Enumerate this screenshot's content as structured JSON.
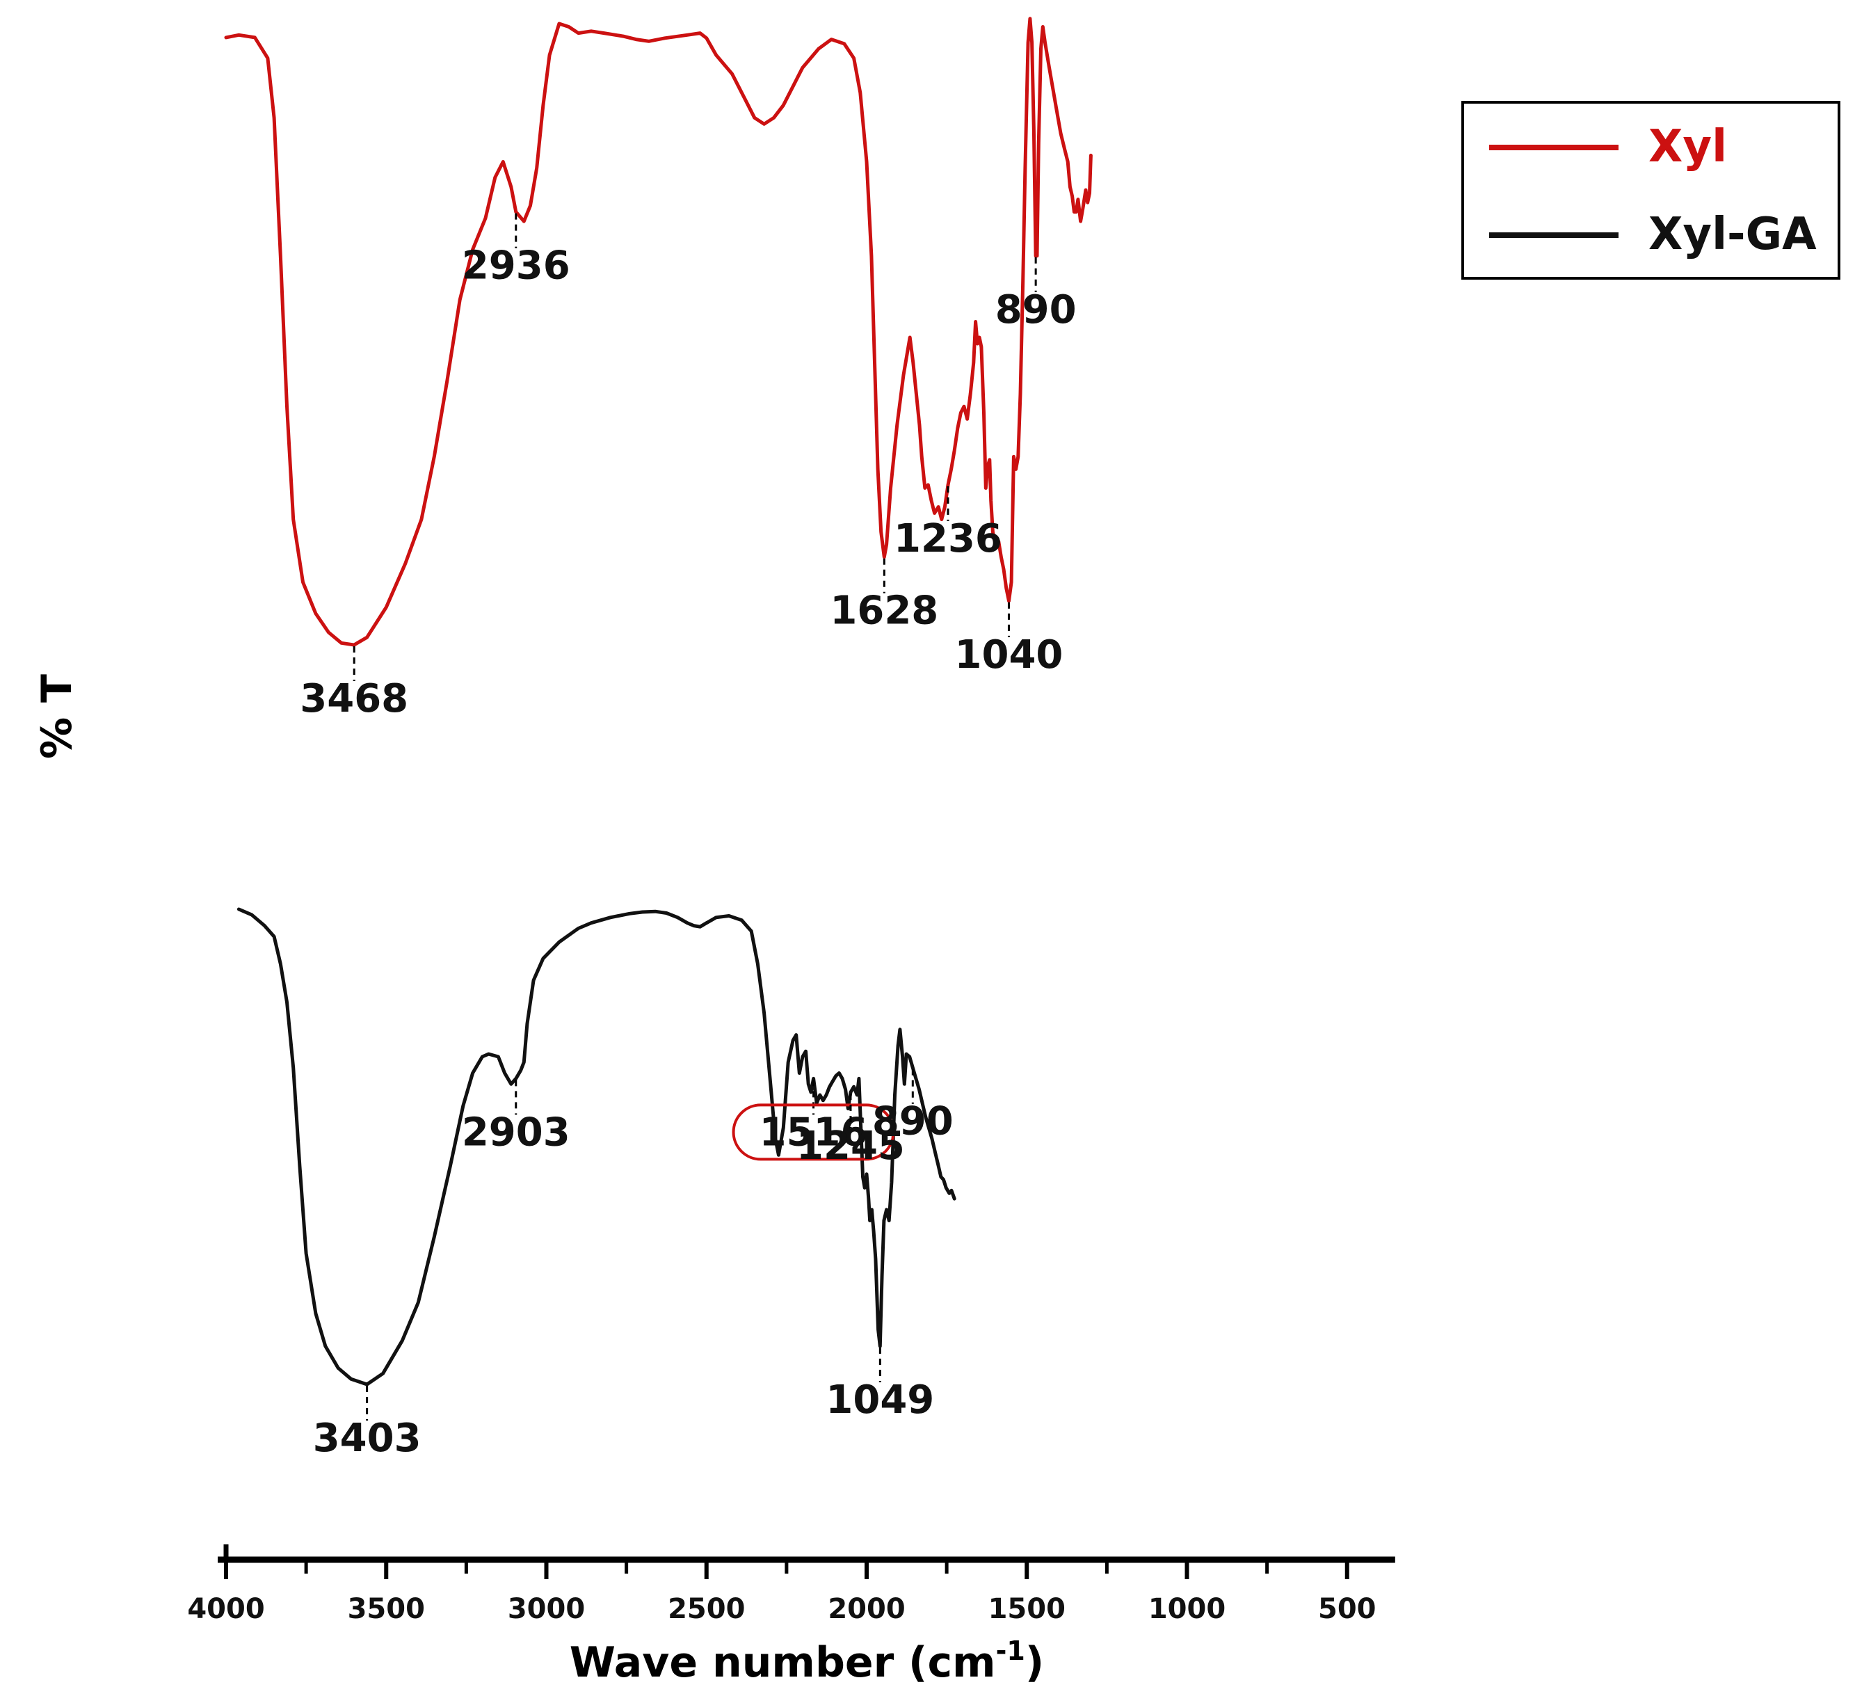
{
  "chart_data": {
    "type": "line",
    "xlabel_main": "Wave number (cm",
    "xlabel_sup": "-1",
    "xlabel_close": ")",
    "ylabel": "% T",
    "xlim": [
      4000,
      350
    ],
    "x_ticks": [
      4000,
      3500,
      3000,
      2500,
      2000,
      1500,
      1000,
      500
    ],
    "x_tick_labels": [
      "4000",
      "3500",
      "3000",
      "2500",
      "2000",
      "1500",
      "1000",
      "500"
    ],
    "legend": {
      "position": "top-right"
    },
    "series": [
      {
        "name": "Xyl",
        "color": "#cc1111",
        "points": [
          [
            4000,
            0.968
          ],
          [
            3960,
            0.972
          ],
          [
            3910,
            0.968
          ],
          [
            3870,
            0.935
          ],
          [
            3850,
            0.84
          ],
          [
            3830,
            0.62
          ],
          [
            3810,
            0.38
          ],
          [
            3790,
            0.2
          ],
          [
            3760,
            0.1
          ],
          [
            3720,
            0.05
          ],
          [
            3680,
            0.02
          ],
          [
            3640,
            0.003
          ],
          [
            3600,
            0.0
          ],
          [
            3560,
            0.012
          ],
          [
            3500,
            0.06
          ],
          [
            3440,
            0.13
          ],
          [
            3390,
            0.2
          ],
          [
            3350,
            0.3
          ],
          [
            3310,
            0.42
          ],
          [
            3270,
            0.55
          ],
          [
            3230,
            0.63
          ],
          [
            3190,
            0.68
          ],
          [
            3160,
            0.745
          ],
          [
            3135,
            0.77
          ],
          [
            3110,
            0.73
          ],
          [
            3095,
            0.69
          ],
          [
            3070,
            0.675
          ],
          [
            3050,
            0.7
          ],
          [
            3030,
            0.76
          ],
          [
            3010,
            0.86
          ],
          [
            2990,
            0.94
          ],
          [
            2960,
            0.99
          ],
          [
            2930,
            0.985
          ],
          [
            2900,
            0.975
          ],
          [
            2860,
            0.978
          ],
          [
            2820,
            0.975
          ],
          [
            2760,
            0.97
          ],
          [
            2720,
            0.965
          ],
          [
            2680,
            0.962
          ],
          [
            2630,
            0.967
          ],
          [
            2560,
            0.972
          ],
          [
            2520,
            0.975
          ],
          [
            2500,
            0.967
          ],
          [
            2470,
            0.94
          ],
          [
            2420,
            0.91
          ],
          [
            2380,
            0.87
          ],
          [
            2350,
            0.84
          ],
          [
            2320,
            0.83
          ],
          [
            2290,
            0.84
          ],
          [
            2260,
            0.86
          ],
          [
            2230,
            0.89
          ],
          [
            2200,
            0.92
          ],
          [
            2150,
            0.95
          ],
          [
            2110,
            0.965
          ],
          [
            2070,
            0.958
          ],
          [
            2040,
            0.935
          ],
          [
            2020,
            0.88
          ],
          [
            2000,
            0.77
          ],
          [
            1985,
            0.62
          ],
          [
            1975,
            0.45
          ],
          [
            1965,
            0.28
          ],
          [
            1955,
            0.18
          ],
          [
            1945,
            0.14
          ],
          [
            1938,
            0.16
          ],
          [
            1925,
            0.25
          ],
          [
            1905,
            0.35
          ],
          [
            1885,
            0.43
          ],
          [
            1865,
            0.49
          ],
          [
            1855,
            0.45
          ],
          [
            1845,
            0.4
          ],
          [
            1835,
            0.35
          ],
          [
            1828,
            0.3
          ],
          [
            1818,
            0.25
          ],
          [
            1808,
            0.255
          ],
          [
            1798,
            0.23
          ],
          [
            1788,
            0.21
          ],
          [
            1776,
            0.22
          ],
          [
            1766,
            0.2
          ],
          [
            1756,
            0.22
          ],
          [
            1746,
            0.255
          ],
          [
            1736,
            0.28
          ],
          [
            1726,
            0.31
          ],
          [
            1716,
            0.345
          ],
          [
            1706,
            0.37
          ],
          [
            1696,
            0.38
          ],
          [
            1686,
            0.36
          ],
          [
            1676,
            0.4
          ],
          [
            1666,
            0.45
          ],
          [
            1660,
            0.515
          ],
          [
            1654,
            0.48
          ],
          [
            1648,
            0.49
          ],
          [
            1642,
            0.475
          ],
          [
            1634,
            0.37
          ],
          [
            1628,
            0.25
          ],
          [
            1622,
            0.285
          ],
          [
            1616,
            0.295
          ],
          [
            1612,
            0.23
          ],
          [
            1606,
            0.18
          ],
          [
            1598,
            0.16
          ],
          [
            1588,
            0.165
          ],
          [
            1580,
            0.14
          ],
          [
            1572,
            0.12
          ],
          [
            1564,
            0.09
          ],
          [
            1556,
            0.07
          ],
          [
            1548,
            0.1
          ],
          [
            1541,
            0.3
          ],
          [
            1534,
            0.28
          ],
          [
            1527,
            0.3
          ],
          [
            1520,
            0.4
          ],
          [
            1512,
            0.58
          ],
          [
            1505,
            0.76
          ],
          [
            1496,
            0.96
          ],
          [
            1490,
            0.998
          ],
          [
            1484,
            0.96
          ],
          [
            1478,
            0.82
          ],
          [
            1472,
            0.62
          ],
          [
            1468,
            0.62
          ],
          [
            1463,
            0.8
          ],
          [
            1456,
            0.95
          ],
          [
            1450,
            0.985
          ],
          [
            1443,
            0.96
          ],
          [
            1430,
            0.92
          ],
          [
            1418,
            0.885
          ],
          [
            1406,
            0.85
          ],
          [
            1394,
            0.815
          ],
          [
            1382,
            0.79
          ],
          [
            1372,
            0.77
          ],
          [
            1365,
            0.73
          ],
          [
            1358,
            0.715
          ],
          [
            1352,
            0.69
          ],
          [
            1346,
            0.69
          ],
          [
            1340,
            0.71
          ],
          [
            1332,
            0.675
          ],
          [
            1325,
            0.695
          ],
          [
            1316,
            0.725
          ],
          [
            1310,
            0.705
          ],
          [
            1304,
            0.72
          ],
          [
            1300,
            0.78
          ]
        ],
        "peaks": [
          {
            "label": "3468",
            "x": 3600
          },
          {
            "label": "2936",
            "x": 3095
          },
          {
            "label": "1628",
            "x": 1945
          },
          {
            "label": "1236",
            "x": 1746
          },
          {
            "label": "1040",
            "x": 1556
          },
          {
            "label": "890",
            "x": 1472
          }
        ]
      },
      {
        "name": "Xyl-GA",
        "color": "#111111",
        "points": [
          [
            3960,
            0.87
          ],
          [
            3920,
            0.86
          ],
          [
            3880,
            0.84
          ],
          [
            3850,
            0.82
          ],
          [
            3830,
            0.77
          ],
          [
            3810,
            0.7
          ],
          [
            3790,
            0.58
          ],
          [
            3770,
            0.4
          ],
          [
            3750,
            0.24
          ],
          [
            3720,
            0.13
          ],
          [
            3690,
            0.07
          ],
          [
            3650,
            0.03
          ],
          [
            3610,
            0.01
          ],
          [
            3560,
            0.0
          ],
          [
            3510,
            0.02
          ],
          [
            3450,
            0.08
          ],
          [
            3400,
            0.15
          ],
          [
            3350,
            0.27
          ],
          [
            3300,
            0.4
          ],
          [
            3260,
            0.51
          ],
          [
            3230,
            0.57
          ],
          [
            3200,
            0.6
          ],
          [
            3180,
            0.605
          ],
          [
            3150,
            0.6
          ],
          [
            3130,
            0.57
          ],
          [
            3110,
            0.55
          ],
          [
            3095,
            0.56
          ],
          [
            3080,
            0.575
          ],
          [
            3070,
            0.59
          ],
          [
            3060,
            0.66
          ],
          [
            3040,
            0.74
          ],
          [
            3010,
            0.78
          ],
          [
            2960,
            0.81
          ],
          [
            2900,
            0.835
          ],
          [
            2860,
            0.845
          ],
          [
            2800,
            0.855
          ],
          [
            2740,
            0.862
          ],
          [
            2700,
            0.865
          ],
          [
            2660,
            0.866
          ],
          [
            2625,
            0.863
          ],
          [
            2590,
            0.855
          ],
          [
            2560,
            0.845
          ],
          [
            2540,
            0.84
          ],
          [
            2520,
            0.838
          ],
          [
            2500,
            0.845
          ],
          [
            2470,
            0.855
          ],
          [
            2430,
            0.858
          ],
          [
            2390,
            0.85
          ],
          [
            2360,
            0.83
          ],
          [
            2340,
            0.77
          ],
          [
            2320,
            0.68
          ],
          [
            2300,
            0.55
          ],
          [
            2285,
            0.45
          ],
          [
            2275,
            0.42
          ],
          [
            2260,
            0.47
          ],
          [
            2245,
            0.59
          ],
          [
            2230,
            0.63
          ],
          [
            2220,
            0.64
          ],
          [
            2210,
            0.57
          ],
          [
            2200,
            0.6
          ],
          [
            2190,
            0.61
          ],
          [
            2182,
            0.55
          ],
          [
            2174,
            0.535
          ],
          [
            2166,
            0.56
          ],
          [
            2156,
            0.515
          ],
          [
            2146,
            0.53
          ],
          [
            2136,
            0.52
          ],
          [
            2126,
            0.53
          ],
          [
            2116,
            0.545
          ],
          [
            2106,
            0.555
          ],
          [
            2096,
            0.565
          ],
          [
            2086,
            0.57
          ],
          [
            2076,
            0.56
          ],
          [
            2066,
            0.54
          ],
          [
            2058,
            0.505
          ],
          [
            2050,
            0.535
          ],
          [
            2040,
            0.545
          ],
          [
            2030,
            0.53
          ],
          [
            2024,
            0.56
          ],
          [
            2018,
            0.47
          ],
          [
            2012,
            0.38
          ],
          [
            2006,
            0.36
          ],
          [
            2000,
            0.385
          ],
          [
            1994,
            0.34
          ],
          [
            1990,
            0.3
          ],
          [
            1984,
            0.32
          ],
          [
            1978,
            0.28
          ],
          [
            1972,
            0.23
          ],
          [
            1964,
            0.1
          ],
          [
            1958,
            0.07
          ],
          [
            1952,
            0.2
          ],
          [
            1946,
            0.3
          ],
          [
            1938,
            0.32
          ],
          [
            1930,
            0.3
          ],
          [
            1922,
            0.37
          ],
          [
            1912,
            0.53
          ],
          [
            1902,
            0.62
          ],
          [
            1896,
            0.65
          ],
          [
            1888,
            0.6
          ],
          [
            1882,
            0.55
          ],
          [
            1876,
            0.605
          ],
          [
            1866,
            0.6
          ],
          [
            1856,
            0.58
          ],
          [
            1846,
            0.56
          ],
          [
            1836,
            0.54
          ],
          [
            1826,
            0.515
          ],
          [
            1816,
            0.49
          ],
          [
            1806,
            0.47
          ],
          [
            1796,
            0.45
          ],
          [
            1786,
            0.425
          ],
          [
            1776,
            0.4
          ],
          [
            1768,
            0.38
          ],
          [
            1760,
            0.375
          ],
          [
            1752,
            0.36
          ],
          [
            1742,
            0.35
          ],
          [
            1735,
            0.355
          ],
          [
            1726,
            0.34
          ]
        ],
        "peaks": [
          {
            "label": "3403",
            "x": 3560
          },
          {
            "label": "2903",
            "x": 3095
          },
          {
            "label": "1516",
            "x": 2166,
            "highlighted": true
          },
          {
            "label": "1245",
            "x": 2050
          },
          {
            "label": "1049",
            "x": 1958
          },
          {
            "label": "890",
            "x": 1856
          }
        ]
      }
    ]
  }
}
